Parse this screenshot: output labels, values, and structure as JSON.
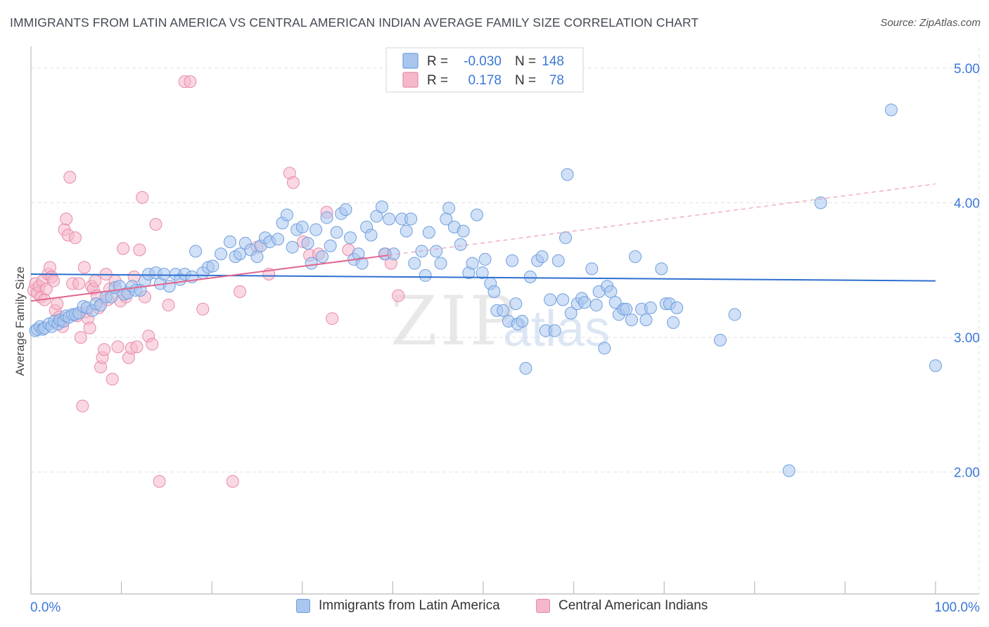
{
  "title": "IMMIGRANTS FROM LATIN AMERICA VS CENTRAL AMERICAN INDIAN AVERAGE FAMILY SIZE CORRELATION CHART",
  "source": "Source: ZipAtlas.com",
  "watermark": {
    "zip": "ZIP",
    "atlas": "atlas"
  },
  "colors": {
    "blue_fill": "#a9c6ef",
    "blue_stroke": "#6f9fde",
    "blue_line": "#2f6fd0",
    "pink_fill": "#f5b8cb",
    "pink_stroke": "#e88aa8",
    "pink_line": "#e2668e",
    "axis_label": "#3b78d8",
    "grid": "#e2e2e2"
  },
  "legend_box": {
    "rows": [
      {
        "r_label": "R =",
        "r_value": "-0.030",
        "n_label": "N =",
        "n_value": "148"
      },
      {
        "r_label": "R =",
        "r_value": "0.178",
        "n_label": "N =",
        "n_value": "78"
      }
    ]
  },
  "legend_bottom": [
    "Immigrants from Latin America",
    "Central American Indians"
  ],
  "chart_data": {
    "type": "scatter",
    "ylabel": "Average Family Size",
    "xlabel": "",
    "xlim": [
      0,
      100
    ],
    "ylim": [
      1.2,
      5.1
    ],
    "x_tick_labels": [
      "0.0%",
      "100.0%"
    ],
    "y_ticks": [
      2.0,
      3.0,
      4.0,
      5.0
    ],
    "y_tick_labels": [
      "2.00",
      "3.00",
      "4.00",
      "5.00"
    ],
    "grid": true,
    "series": [
      {
        "name": "Immigrants from Latin America",
        "r": -0.03,
        "n": 148,
        "trend": {
          "x": [
            0,
            100
          ],
          "y": [
            3.47,
            3.42
          ]
        },
        "points": [
          [
            0.5,
            3.05
          ],
          [
            0.7,
            3.06
          ],
          [
            1.0,
            3.08
          ],
          [
            1.3,
            3.06
          ],
          [
            1.5,
            3.07
          ],
          [
            2.0,
            3.1
          ],
          [
            2.3,
            3.08
          ],
          [
            2.6,
            3.12
          ],
          [
            3.0,
            3.1
          ],
          [
            3.2,
            3.13
          ],
          [
            3.6,
            3.12
          ],
          [
            3.9,
            3.16
          ],
          [
            4.2,
            3.15
          ],
          [
            4.6,
            3.17
          ],
          [
            4.9,
            3.17
          ],
          [
            5.3,
            3.18
          ],
          [
            5.8,
            3.23
          ],
          [
            6.2,
            3.22
          ],
          [
            6.8,
            3.2
          ],
          [
            7.2,
            3.25
          ],
          [
            7.7,
            3.24
          ],
          [
            8.3,
            3.3
          ],
          [
            8.9,
            3.3
          ],
          [
            9.3,
            3.37
          ],
          [
            9.8,
            3.38
          ],
          [
            10.3,
            3.32
          ],
          [
            10.7,
            3.33
          ],
          [
            11.2,
            3.38
          ],
          [
            11.6,
            3.35
          ],
          [
            12.1,
            3.35
          ],
          [
            12.6,
            3.42
          ],
          [
            13.0,
            3.47
          ],
          [
            13.8,
            3.48
          ],
          [
            14.3,
            3.4
          ],
          [
            14.7,
            3.47
          ],
          [
            15.3,
            3.38
          ],
          [
            16.0,
            3.47
          ],
          [
            16.5,
            3.43
          ],
          [
            17.0,
            3.47
          ],
          [
            17.8,
            3.45
          ],
          [
            18.2,
            3.64
          ],
          [
            19.0,
            3.48
          ],
          [
            19.6,
            3.52
          ],
          [
            20.1,
            3.53
          ],
          [
            21.0,
            3.62
          ],
          [
            22.0,
            3.71
          ],
          [
            22.6,
            3.6
          ],
          [
            23.1,
            3.62
          ],
          [
            23.7,
            3.7
          ],
          [
            24.3,
            3.65
          ],
          [
            25.0,
            3.6
          ],
          [
            25.4,
            3.68
          ],
          [
            25.9,
            3.74
          ],
          [
            26.4,
            3.71
          ],
          [
            27.3,
            3.73
          ],
          [
            27.8,
            3.85
          ],
          [
            28.3,
            3.91
          ],
          [
            28.9,
            3.67
          ],
          [
            29.4,
            3.8
          ],
          [
            30.0,
            3.82
          ],
          [
            30.6,
            3.7
          ],
          [
            31.0,
            3.55
          ],
          [
            31.5,
            3.8
          ],
          [
            32.2,
            3.6
          ],
          [
            32.7,
            3.89
          ],
          [
            33.1,
            3.68
          ],
          [
            33.8,
            3.78
          ],
          [
            34.3,
            3.92
          ],
          [
            34.8,
            3.95
          ],
          [
            35.3,
            3.74
          ],
          [
            35.7,
            3.58
          ],
          [
            36.2,
            3.62
          ],
          [
            36.6,
            3.55
          ],
          [
            37.1,
            3.82
          ],
          [
            37.6,
            3.76
          ],
          [
            38.2,
            3.9
          ],
          [
            38.8,
            3.97
          ],
          [
            39.1,
            3.62
          ],
          [
            39.6,
            3.88
          ],
          [
            40.1,
            3.62
          ],
          [
            41.0,
            3.88
          ],
          [
            41.5,
            3.79
          ],
          [
            42.0,
            3.88
          ],
          [
            42.4,
            3.55
          ],
          [
            43.2,
            3.64
          ],
          [
            43.6,
            3.46
          ],
          [
            44.0,
            3.78
          ],
          [
            44.8,
            3.64
          ],
          [
            45.3,
            3.55
          ],
          [
            45.9,
            3.88
          ],
          [
            46.2,
            3.96
          ],
          [
            46.8,
            3.82
          ],
          [
            47.5,
            3.69
          ],
          [
            47.8,
            3.79
          ],
          [
            48.4,
            3.48
          ],
          [
            48.8,
            3.55
          ],
          [
            49.3,
            3.91
          ],
          [
            49.9,
            3.48
          ],
          [
            50.2,
            3.58
          ],
          [
            50.8,
            3.4
          ],
          [
            51.2,
            3.34
          ],
          [
            51.5,
            3.2
          ],
          [
            52.2,
            3.2
          ],
          [
            52.8,
            3.12
          ],
          [
            53.2,
            3.57
          ],
          [
            53.6,
            3.25
          ],
          [
            53.8,
            3.1
          ],
          [
            54.3,
            3.12
          ],
          [
            54.7,
            2.77
          ],
          [
            55.2,
            3.45
          ],
          [
            56.0,
            3.57
          ],
          [
            56.5,
            3.6
          ],
          [
            56.9,
            3.05
          ],
          [
            57.4,
            3.28
          ],
          [
            57.9,
            3.05
          ],
          [
            58.3,
            3.57
          ],
          [
            58.8,
            3.28
          ],
          [
            59.1,
            3.74
          ],
          [
            59.3,
            4.21
          ],
          [
            59.7,
            3.18
          ],
          [
            60.4,
            3.25
          ],
          [
            60.9,
            3.29
          ],
          [
            61.2,
            3.26
          ],
          [
            62.0,
            3.51
          ],
          [
            62.5,
            3.24
          ],
          [
            62.8,
            3.34
          ],
          [
            63.4,
            2.92
          ],
          [
            63.7,
            3.38
          ],
          [
            64.1,
            3.34
          ],
          [
            64.6,
            3.26
          ],
          [
            65.0,
            3.17
          ],
          [
            65.5,
            3.21
          ],
          [
            65.8,
            3.21
          ],
          [
            66.4,
            3.13
          ],
          [
            66.8,
            3.6
          ],
          [
            67.5,
            3.21
          ],
          [
            68.0,
            3.13
          ],
          [
            68.5,
            3.22
          ],
          [
            69.7,
            3.51
          ],
          [
            70.2,
            3.25
          ],
          [
            70.6,
            3.25
          ],
          [
            71.0,
            3.11
          ],
          [
            71.4,
            3.22
          ],
          [
            76.2,
            2.98
          ],
          [
            77.8,
            3.17
          ],
          [
            83.8,
            2.01
          ],
          [
            87.3,
            4.0
          ],
          [
            95.1,
            4.69
          ],
          [
            100.0,
            2.79
          ]
        ]
      },
      {
        "name": "Central American Indians",
        "r": 0.178,
        "n": 78,
        "trend": {
          "x": [
            0,
            39.5
          ],
          "y": [
            3.27,
            3.61
          ]
        },
        "trend_extension": {
          "x": [
            39.5,
            100
          ],
          "y": [
            3.61,
            4.14
          ]
        },
        "points": [
          [
            0.3,
            3.35
          ],
          [
            0.5,
            3.4
          ],
          [
            0.7,
            3.33
          ],
          [
            0.9,
            3.38
          ],
          [
            1.1,
            3.3
          ],
          [
            1.3,
            3.42
          ],
          [
            1.5,
            3.28
          ],
          [
            1.7,
            3.36
          ],
          [
            1.9,
            3.47
          ],
          [
            2.1,
            3.52
          ],
          [
            2.3,
            3.45
          ],
          [
            2.5,
            3.42
          ],
          [
            2.7,
            3.2
          ],
          [
            2.9,
            3.25
          ],
          [
            3.1,
            3.15
          ],
          [
            3.3,
            3.12
          ],
          [
            3.5,
            3.08
          ],
          [
            3.7,
            3.8
          ],
          [
            3.9,
            3.88
          ],
          [
            4.1,
            3.76
          ],
          [
            4.3,
            4.19
          ],
          [
            4.6,
            3.4
          ],
          [
            4.9,
            3.74
          ],
          [
            5.1,
            3.16
          ],
          [
            5.3,
            3.4
          ],
          [
            5.5,
            3.0
          ],
          [
            5.7,
            2.49
          ],
          [
            5.9,
            3.52
          ],
          [
            6.1,
            3.19
          ],
          [
            6.3,
            3.14
          ],
          [
            6.5,
            3.07
          ],
          [
            6.7,
            3.38
          ],
          [
            6.9,
            3.36
          ],
          [
            7.1,
            3.42
          ],
          [
            7.3,
            3.31
          ],
          [
            7.5,
            3.22
          ],
          [
            7.7,
            2.78
          ],
          [
            7.9,
            2.85
          ],
          [
            8.1,
            2.91
          ],
          [
            8.3,
            3.47
          ],
          [
            8.5,
            3.28
          ],
          [
            8.7,
            3.36
          ],
          [
            9.0,
            2.69
          ],
          [
            9.3,
            3.42
          ],
          [
            9.6,
            2.93
          ],
          [
            9.9,
            3.27
          ],
          [
            10.2,
            3.66
          ],
          [
            10.5,
            3.3
          ],
          [
            10.8,
            2.85
          ],
          [
            11.1,
            2.92
          ],
          [
            11.4,
            3.45
          ],
          [
            11.7,
            2.93
          ],
          [
            12.0,
            3.65
          ],
          [
            12.3,
            4.04
          ],
          [
            12.6,
            3.3
          ],
          [
            13.0,
            3.01
          ],
          [
            13.4,
            2.95
          ],
          [
            13.8,
            3.84
          ],
          [
            14.2,
            1.93
          ],
          [
            15.2,
            3.24
          ],
          [
            17.0,
            4.9
          ],
          [
            17.6,
            4.9
          ],
          [
            19.0,
            3.21
          ],
          [
            22.3,
            1.93
          ],
          [
            23.1,
            3.34
          ],
          [
            25.0,
            3.67
          ],
          [
            26.3,
            3.47
          ],
          [
            28.6,
            4.22
          ],
          [
            29.0,
            4.15
          ],
          [
            30.1,
            3.71
          ],
          [
            30.8,
            3.61
          ],
          [
            31.8,
            3.62
          ],
          [
            32.7,
            3.93
          ],
          [
            33.3,
            3.14
          ],
          [
            35.1,
            3.65
          ],
          [
            39.2,
            3.62
          ],
          [
            39.8,
            3.55
          ],
          [
            40.6,
            3.31
          ]
        ]
      }
    ]
  }
}
